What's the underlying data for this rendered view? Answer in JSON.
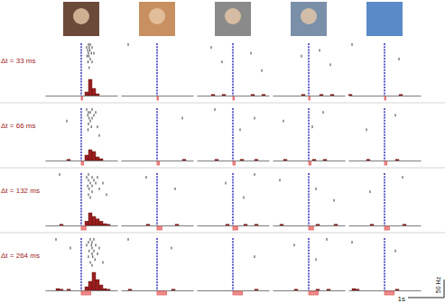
{
  "chart_data": {
    "type": "raster_psth",
    "xlim": [
      -1,
      1
    ],
    "ylim": [
      0,
      60
    ],
    "xticks": [
      0
    ],
    "tick_labels": false,
    "bins": [
      -1,
      -0.9,
      -0.8,
      -0.7,
      -0.6,
      -0.5,
      -0.4,
      -0.3,
      -0.2,
      -0.1,
      0,
      0.1,
      0.2,
      0.3,
      0.4,
      0.5,
      0.6,
      0.7,
      0.8,
      0.9,
      1
    ],
    "scale_bar": {
      "y": 50,
      "y_label": "50 Hz",
      "x": 1,
      "x_label": "1s"
    },
    "rows": [
      {
        "label": "Δt = 33 ms",
        "stimulus": [
          0,
          0.033
        ],
        "panels": [
          {
            "spikes": [
              [
                0.2,
                0.25
              ],
              [
                0.15,
                0.22,
                0.3
              ],
              [
                0.18,
                0.24
              ],
              [
                0.2,
                0.28,
                0.35
              ],
              [
                0.16,
                0.21
              ],
              [
                0.25
              ],
              [
                0.19,
                0.3
              ],
              [],
              [
                0.22
              ],
              []
            ],
            "counts": [
              0,
              0,
              0,
              0,
              0,
              0,
              0,
              0,
              0,
              0,
              0,
              10,
              45,
              20,
              5,
              0,
              0,
              0,
              0,
              0
            ]
          },
          {
            "spikes": [
              [
                -0.8
              ],
              [],
              [],
              [],
              [],
              [],
              [],
              [],
              [],
              []
            ],
            "counts": [
              0,
              0,
              0,
              0,
              0,
              0,
              0,
              0,
              0,
              0,
              0,
              0,
              0,
              0,
              0,
              0,
              0,
              0,
              0,
              0
            ]
          },
          {
            "spikes": [
              [],
              [
                -0.6
              ],
              [],
              [
                0.5
              ],
              [],
              [],
              [
                -0.3
              ],
              [],
              [],
              [
                0.8
              ]
            ],
            "counts": [
              0,
              0,
              0,
              0,
              3,
              0,
              0,
              3,
              0,
              0,
              0,
              0,
              0,
              0,
              0,
              3,
              0,
              0,
              3,
              0
            ]
          },
          {
            "spikes": [
              [],
              [],
              [
                0.3
              ],
              [],
              [
                -0.2
              ],
              [],
              [],
              [
                0.6
              ],
              [],
              []
            ],
            "counts": [
              0,
              0,
              0,
              0,
              0,
              0,
              0,
              0,
              3,
              0,
              0,
              0,
              0,
              3,
              0,
              0,
              3,
              0,
              0,
              0
            ]
          },
          {
            "spikes": [
              [
                -0.9
              ],
              [],
              [],
              [],
              [],
              [
                0.4
              ],
              [],
              [],
              [],
              []
            ],
            "counts": [
              3,
              0,
              0,
              0,
              0,
              0,
              0,
              0,
              0,
              0,
              0,
              0,
              0,
              0,
              3,
              0,
              0,
              0,
              0,
              0
            ]
          }
        ]
      },
      {
        "label": "Δt = 66 ms",
        "stimulus": [
          0,
          0.066
        ],
        "panels": [
          {
            "spikes": [
              [
                0.15,
                0.3
              ],
              [
                0.2,
                0.25,
                0.4
              ],
              [
                0.18,
                0.35
              ],
              [
                0.22,
                0.3
              ],
              [
                -0.4,
                0.25
              ],
              [
                0.2
              ],
              [
                0.28,
                0.45
              ],
              [
                0.19
              ],
              [],
              [
                0.5
              ]
            ],
            "counts": [
              0,
              0,
              0,
              0,
              0,
              0,
              3,
              0,
              0,
              0,
              0,
              15,
              30,
              25,
              10,
              5,
              0,
              0,
              0,
              0
            ]
          },
          {
            "spikes": [
              [],
              [],
              [],
              [
                0.7
              ],
              [],
              [],
              [],
              [],
              [],
              []
            ],
            "counts": [
              0,
              0,
              0,
              0,
              0,
              0,
              0,
              0,
              0,
              0,
              0,
              0,
              0,
              0,
              0,
              0,
              0,
              3,
              0,
              0
            ]
          },
          {
            "spikes": [
              [
                -0.5
              ],
              [],
              [],
              [
                0.6
              ],
              [],
              [],
              [],
              [
                0.2
              ],
              [],
              []
            ],
            "counts": [
              0,
              0,
              0,
              0,
              0,
              3,
              0,
              0,
              0,
              0,
              0,
              0,
              3,
              0,
              0,
              0,
              3,
              0,
              0,
              0
            ]
          },
          {
            "spikes": [
              [],
              [
                0.4
              ],
              [],
              [],
              [
                -0.7
              ],
              [],
              [
                0.1
              ],
              [],
              [],
              []
            ],
            "counts": [
              0,
              0,
              0,
              3,
              0,
              0,
              0,
              0,
              0,
              0,
              0,
              3,
              0,
              0,
              3,
              0,
              0,
              0,
              0,
              0
            ]
          },
          {
            "spikes": [
              [],
              [],
              [
                0.3
              ],
              [],
              [],
              [],
              [],
              [
                -0.5
              ],
              [],
              []
            ],
            "counts": [
              0,
              0,
              0,
              0,
              0,
              3,
              0,
              0,
              0,
              0,
              0,
              0,
              0,
              3,
              0,
              0,
              0,
              0,
              0,
              0
            ]
          }
        ]
      },
      {
        "label": "Δt = 132 ms",
        "stimulus": [
          0,
          0.132
        ],
        "panels": [
          {
            "spikes": [
              [
                -0.6,
                0.2
              ],
              [
                0.15,
                0.3,
                0.45
              ],
              [
                0.2,
                0.35
              ],
              [
                0.25,
                0.4,
                0.6
              ],
              [
                0.18,
                0.3
              ],
              [
                0.22,
                0.5
              ],
              [
                0.3
              ],
              [
                0.2,
                0.7
              ],
              [
                0.25
              ],
              []
            ],
            "counts": [
              0,
              0,
              0,
              0,
              3,
              0,
              0,
              0,
              0,
              0,
              0,
              12,
              35,
              25,
              18,
              12,
              5,
              3,
              0,
              0
            ]
          },
          {
            "spikes": [
              [],
              [
                -0.3
              ],
              [],
              [],
              [],
              [
                0.5
              ],
              [],
              [],
              [],
              []
            ],
            "counts": [
              0,
              0,
              0,
              0,
              0,
              0,
              0,
              3,
              0,
              0,
              0,
              0,
              0,
              0,
              0,
              3,
              0,
              0,
              0,
              0
            ]
          },
          {
            "spikes": [
              [
                0.6
              ],
              [],
              [],
              [
                -0.2
              ],
              [],
              [],
              [],
              [],
              [
                0.3
              ],
              []
            ],
            "counts": [
              0,
              0,
              0,
              0,
              0,
              0,
              0,
              0,
              3,
              0,
              0,
              0,
              0,
              3,
              0,
              0,
              3,
              0,
              0,
              0
            ]
          },
          {
            "spikes": [
              [],
              [],
              [
                -0.8
              ],
              [],
              [],
              [
                0.2
              ],
              [],
              [],
              [],
              [
                0.7
              ]
            ],
            "counts": [
              0,
              0,
              3,
              0,
              0,
              0,
              0,
              0,
              0,
              0,
              0,
              0,
              3,
              0,
              0,
              0,
              0,
              3,
              0,
              0
            ]
          },
          {
            "spikes": [
              [],
              [
                0.5
              ],
              [],
              [],
              [],
              [],
              [
                -0.4
              ],
              [],
              [],
              []
            ],
            "counts": [
              0,
              0,
              0,
              0,
              0,
              0,
              3,
              0,
              0,
              0,
              0,
              0,
              0,
              0,
              0,
              3,
              0,
              0,
              0,
              0
            ]
          }
        ]
      },
      {
        "label": "Δt = 264 ms",
        "stimulus": [
          0,
          0.264
        ],
        "panels": [
          {
            "spikes": [
              [
                -0.7,
                0.25,
                0.35
              ],
              [
                0.2,
                0.3
              ],
              [
                0.15,
                0.28,
                0.4
              ],
              [
                -0.3,
                0.3,
                0.5
              ],
              [
                0.22,
                0.35
              ],
              [
                0.3,
                0.45
              ],
              [
                0.2,
                0.32
              ],
              [
                0.38
              ],
              [
                0.25,
                0.6
              ],
              [
                0.3
              ]
            ],
            "counts": [
              0,
              0,
              0,
              5,
              3,
              0,
              3,
              0,
              0,
              0,
              0,
              10,
              25,
              50,
              30,
              15,
              5,
              3,
              0,
              0
            ]
          },
          {
            "spikes": [
              [
                -0.8
              ],
              [],
              [],
              [
                0.4
              ],
              [],
              [],
              [],
              [],
              [],
              []
            ],
            "counts": [
              0,
              0,
              3,
              0,
              0,
              0,
              0,
              0,
              0,
              0,
              0,
              0,
              0,
              0,
              3,
              0,
              0,
              0,
              0,
              0
            ]
          },
          {
            "spikes": [
              [],
              [],
              [],
              [],
              [],
              [],
              [
                0.6
              ],
              [],
              [],
              []
            ],
            "counts": [
              0,
              0,
              0,
              0,
              0,
              0,
              0,
              0,
              0,
              0,
              0,
              0,
              0,
              0,
              0,
              0,
              3,
              0,
              0,
              0
            ]
          },
          {
            "spikes": [
              [
                0.5
              ],
              [],
              [
                -0.4
              ],
              [],
              [],
              [],
              [],
              [
                0.2
              ],
              [],
              []
            ],
            "counts": [
              0,
              0,
              0,
              0,
              0,
              0,
              3,
              0,
              0,
              0,
              0,
              0,
              3,
              0,
              0,
              3,
              0,
              0,
              0,
              0
            ]
          },
          {
            "spikes": [
              [],
              [
                -0.9
              ],
              [],
              [],
              [
                0.3
              ],
              [],
              [],
              [],
              [],
              []
            ],
            "counts": [
              0,
              5,
              3,
              0,
              0,
              0,
              0,
              0,
              0,
              0,
              0,
              0,
              0,
              3,
              0,
              0,
              0,
              0,
              0,
              0
            ]
          }
        ]
      }
    ]
  }
}
